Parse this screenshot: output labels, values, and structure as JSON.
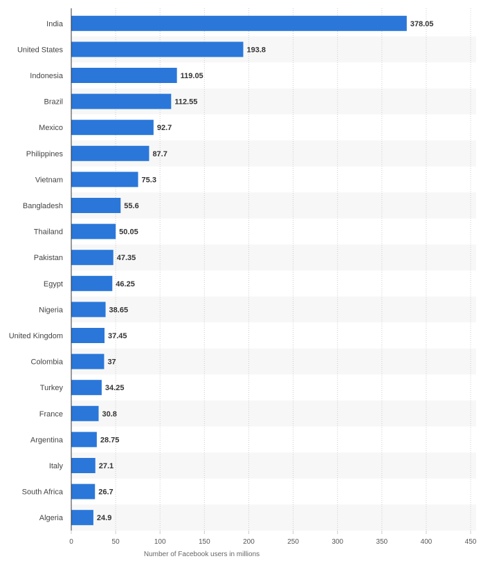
{
  "chart_data": {
    "type": "bar",
    "orientation": "horizontal",
    "categories": [
      "India",
      "United States",
      "Indonesia",
      "Brazil",
      "Mexico",
      "Philippines",
      "Vietnam",
      "Bangladesh",
      "Thailand",
      "Pakistan",
      "Egypt",
      "Nigeria",
      "United Kingdom",
      "Colombia",
      "Turkey",
      "France",
      "Argentina",
      "Italy",
      "South Africa",
      "Algeria"
    ],
    "values": [
      378.05,
      193.8,
      119.05,
      112.55,
      92.7,
      87.7,
      75.3,
      55.6,
      50.05,
      47.35,
      46.25,
      38.65,
      37.45,
      37,
      34.25,
      30.8,
      28.75,
      27.1,
      26.7,
      24.9
    ],
    "value_labels": [
      "378.05",
      "193.8",
      "119.05",
      "112.55",
      "92.7",
      "87.7",
      "75.3",
      "55.6",
      "50.05",
      "47.35",
      "46.25",
      "38.65",
      "37.45",
      "37",
      "34.25",
      "30.8",
      "28.75",
      "27.1",
      "26.7",
      "24.9"
    ],
    "xlabel": "Number of Facebook users in millions",
    "xlim": [
      0,
      450
    ],
    "ticks": [
      0,
      50,
      100,
      150,
      200,
      250,
      300,
      350,
      400,
      450
    ],
    "tick_labels": [
      "0",
      "50",
      "100",
      "150",
      "200",
      "250",
      "300",
      "350",
      "400",
      "450"
    ],
    "grid": true,
    "colors": {
      "bar": "#2a77d9",
      "band": "#f7f7f7",
      "grid": "#cccccc",
      "axis": "#333333"
    }
  }
}
